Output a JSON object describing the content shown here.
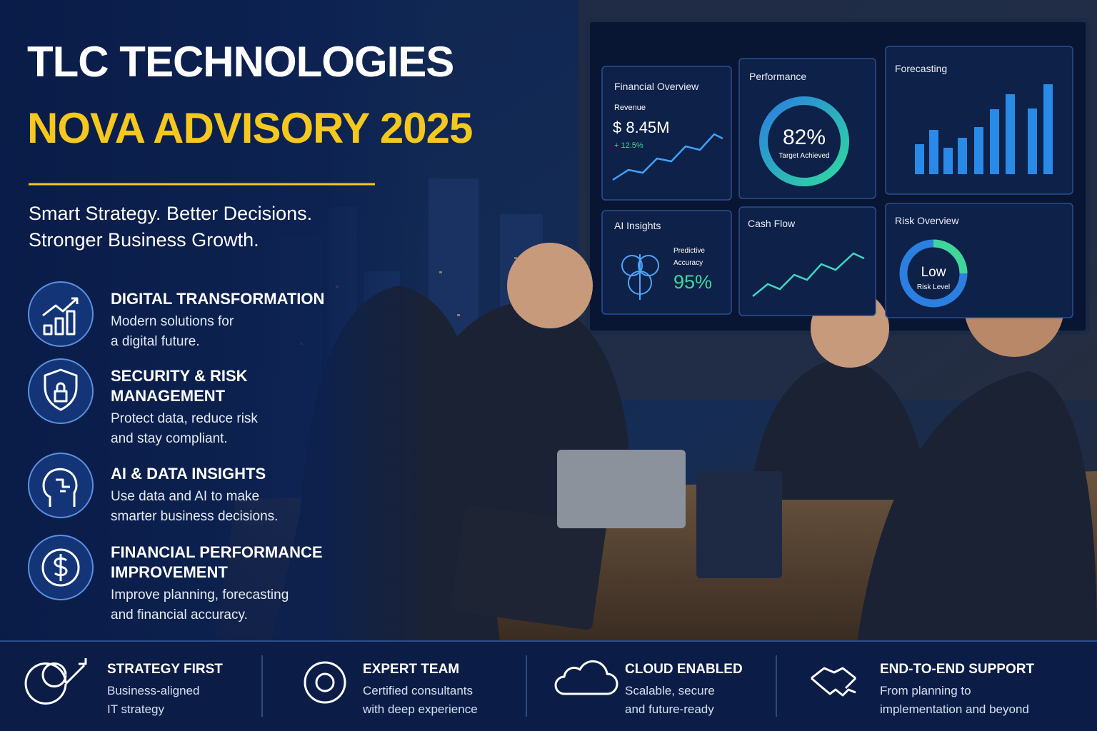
{
  "header": {
    "title": "TLC TECHNOLOGIES",
    "subtitle": "NOVA ADVISORY 2025",
    "tagline": [
      "Smart Strategy. Better Decisions.",
      "Stronger Business Growth."
    ]
  },
  "features": [
    {
      "title": [
        "DIGITAL TRANSFORMATION"
      ],
      "description": [
        "Modern solutions for",
        "a digital future."
      ]
    },
    {
      "title": [
        "SECURITY & RISK",
        "MANAGEMENT"
      ],
      "description": [
        "Protect data, reduce risk",
        "and stay compliant."
      ]
    },
    {
      "title": [
        "AI & DATA INSIGHTS"
      ],
      "description": [
        "Use data and AI to make",
        "smarter business decisions."
      ]
    },
    {
      "title": [
        "FINANCIAL PERFORMANCE",
        "IMPROVEMENT"
      ],
      "description": [
        "Improve planning, forecasting",
        "and financial accuracy."
      ]
    }
  ],
  "dashboard": {
    "financial_overview": {
      "title": "Financial Overview",
      "label": "Revenue",
      "value": "$ 8.45M",
      "change": "+ 12.5%"
    },
    "performance": {
      "title": "Performance",
      "value": "82%",
      "caption": "Target Achieved"
    },
    "forecasting": {
      "title": "Forecasting"
    },
    "ai_insights": {
      "title": "AI Insights",
      "label": [
        "Predictive",
        "Accuracy"
      ],
      "value": "95%"
    },
    "cash_flow": {
      "title": "Cash Flow"
    },
    "risk_overview": {
      "title": "Risk Overview",
      "value": "Low",
      "caption": "Risk Level"
    }
  },
  "benefits": [
    {
      "title": "STRATEGY FIRST",
      "description": [
        "Business-aligned",
        "IT strategy"
      ]
    },
    {
      "title": "EXPERT TEAM",
      "description": [
        "Certified consultants",
        "with deep experience"
      ]
    },
    {
      "title": "CLOUD ENABLED",
      "description": [
        "Scalable, secure",
        "and future-ready"
      ]
    },
    {
      "title": "END-TO-END SUPPORT",
      "description": [
        "From planning to",
        "implementation and beyond"
      ]
    }
  ]
}
